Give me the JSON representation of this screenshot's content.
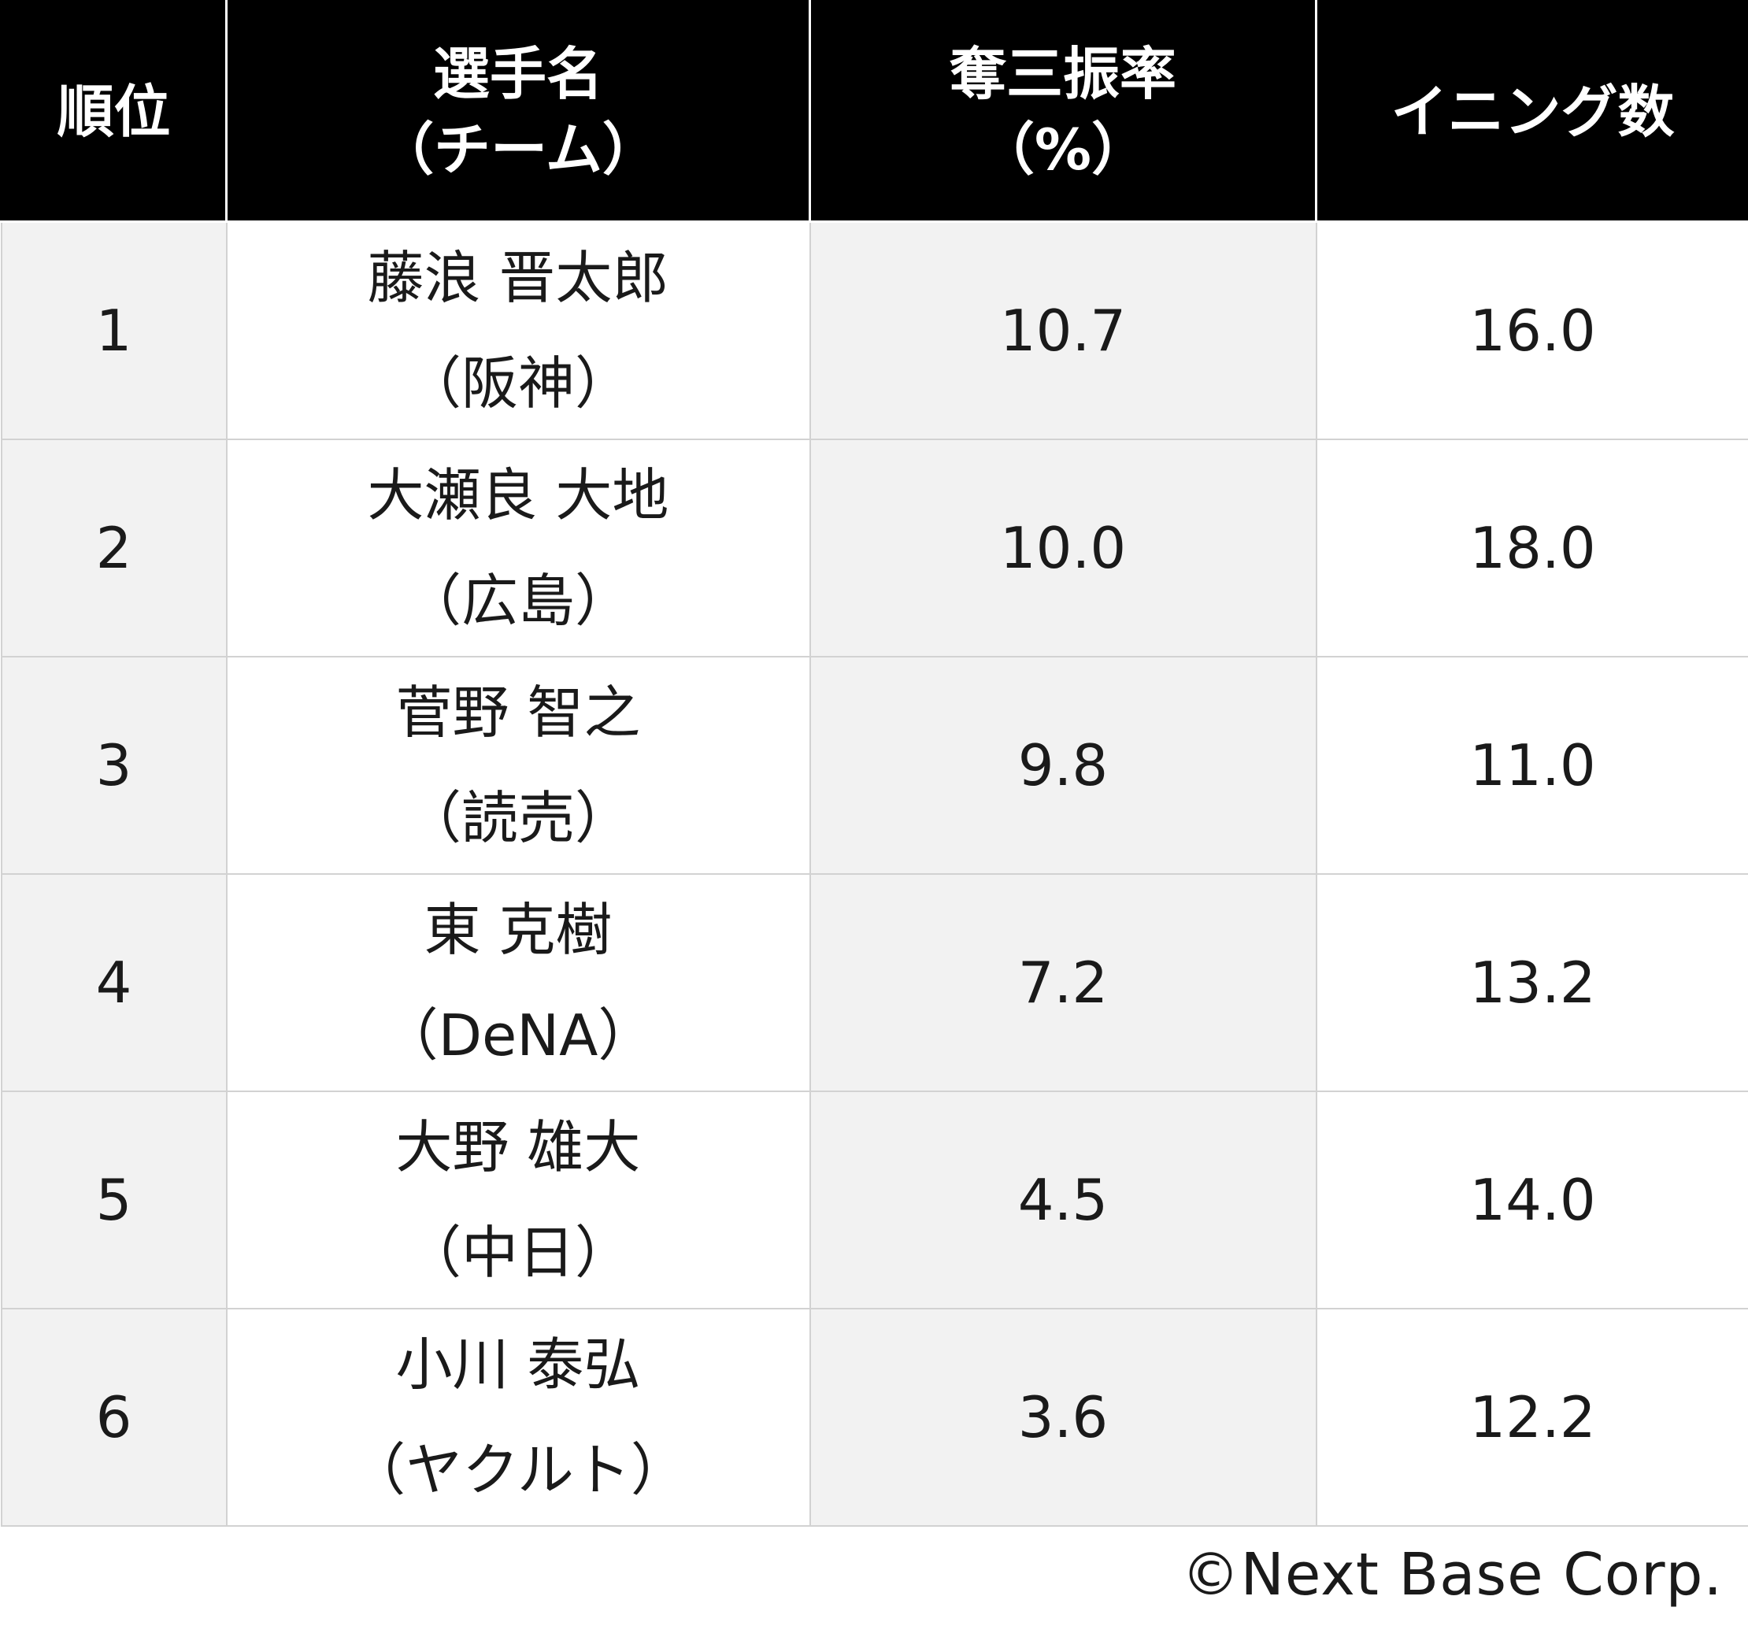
{
  "table": {
    "headers": {
      "rank": "順位",
      "name_line1": "選手名",
      "name_line2": "（チーム）",
      "kpct_line1": "奪三振率",
      "kpct_line2": "（%）",
      "innings": "イニング数"
    },
    "rows": [
      {
        "rank": "1",
        "player": "藤浪 晋太郎",
        "team": "（阪神）",
        "k_rate": "10.7",
        "innings": "16.0"
      },
      {
        "rank": "2",
        "player": "大瀬良 大地",
        "team": "（広島）",
        "k_rate": "10.0",
        "innings": "18.0"
      },
      {
        "rank": "3",
        "player": "菅野 智之",
        "team": "（読売）",
        "k_rate": "9.8",
        "innings": "11.0"
      },
      {
        "rank": "4",
        "player": "東 克樹",
        "team": "（DeNA）",
        "k_rate": "7.2",
        "innings": "13.2"
      },
      {
        "rank": "5",
        "player": "大野 雄大",
        "team": "（中日）",
        "k_rate": "4.5",
        "innings": "14.0"
      },
      {
        "rank": "6",
        "player": "小川 泰弘",
        "team": "（ヤクルト）",
        "k_rate": "3.6",
        "innings": "12.2"
      }
    ]
  },
  "footer": {
    "copyright": "©Next Base Corp."
  }
}
